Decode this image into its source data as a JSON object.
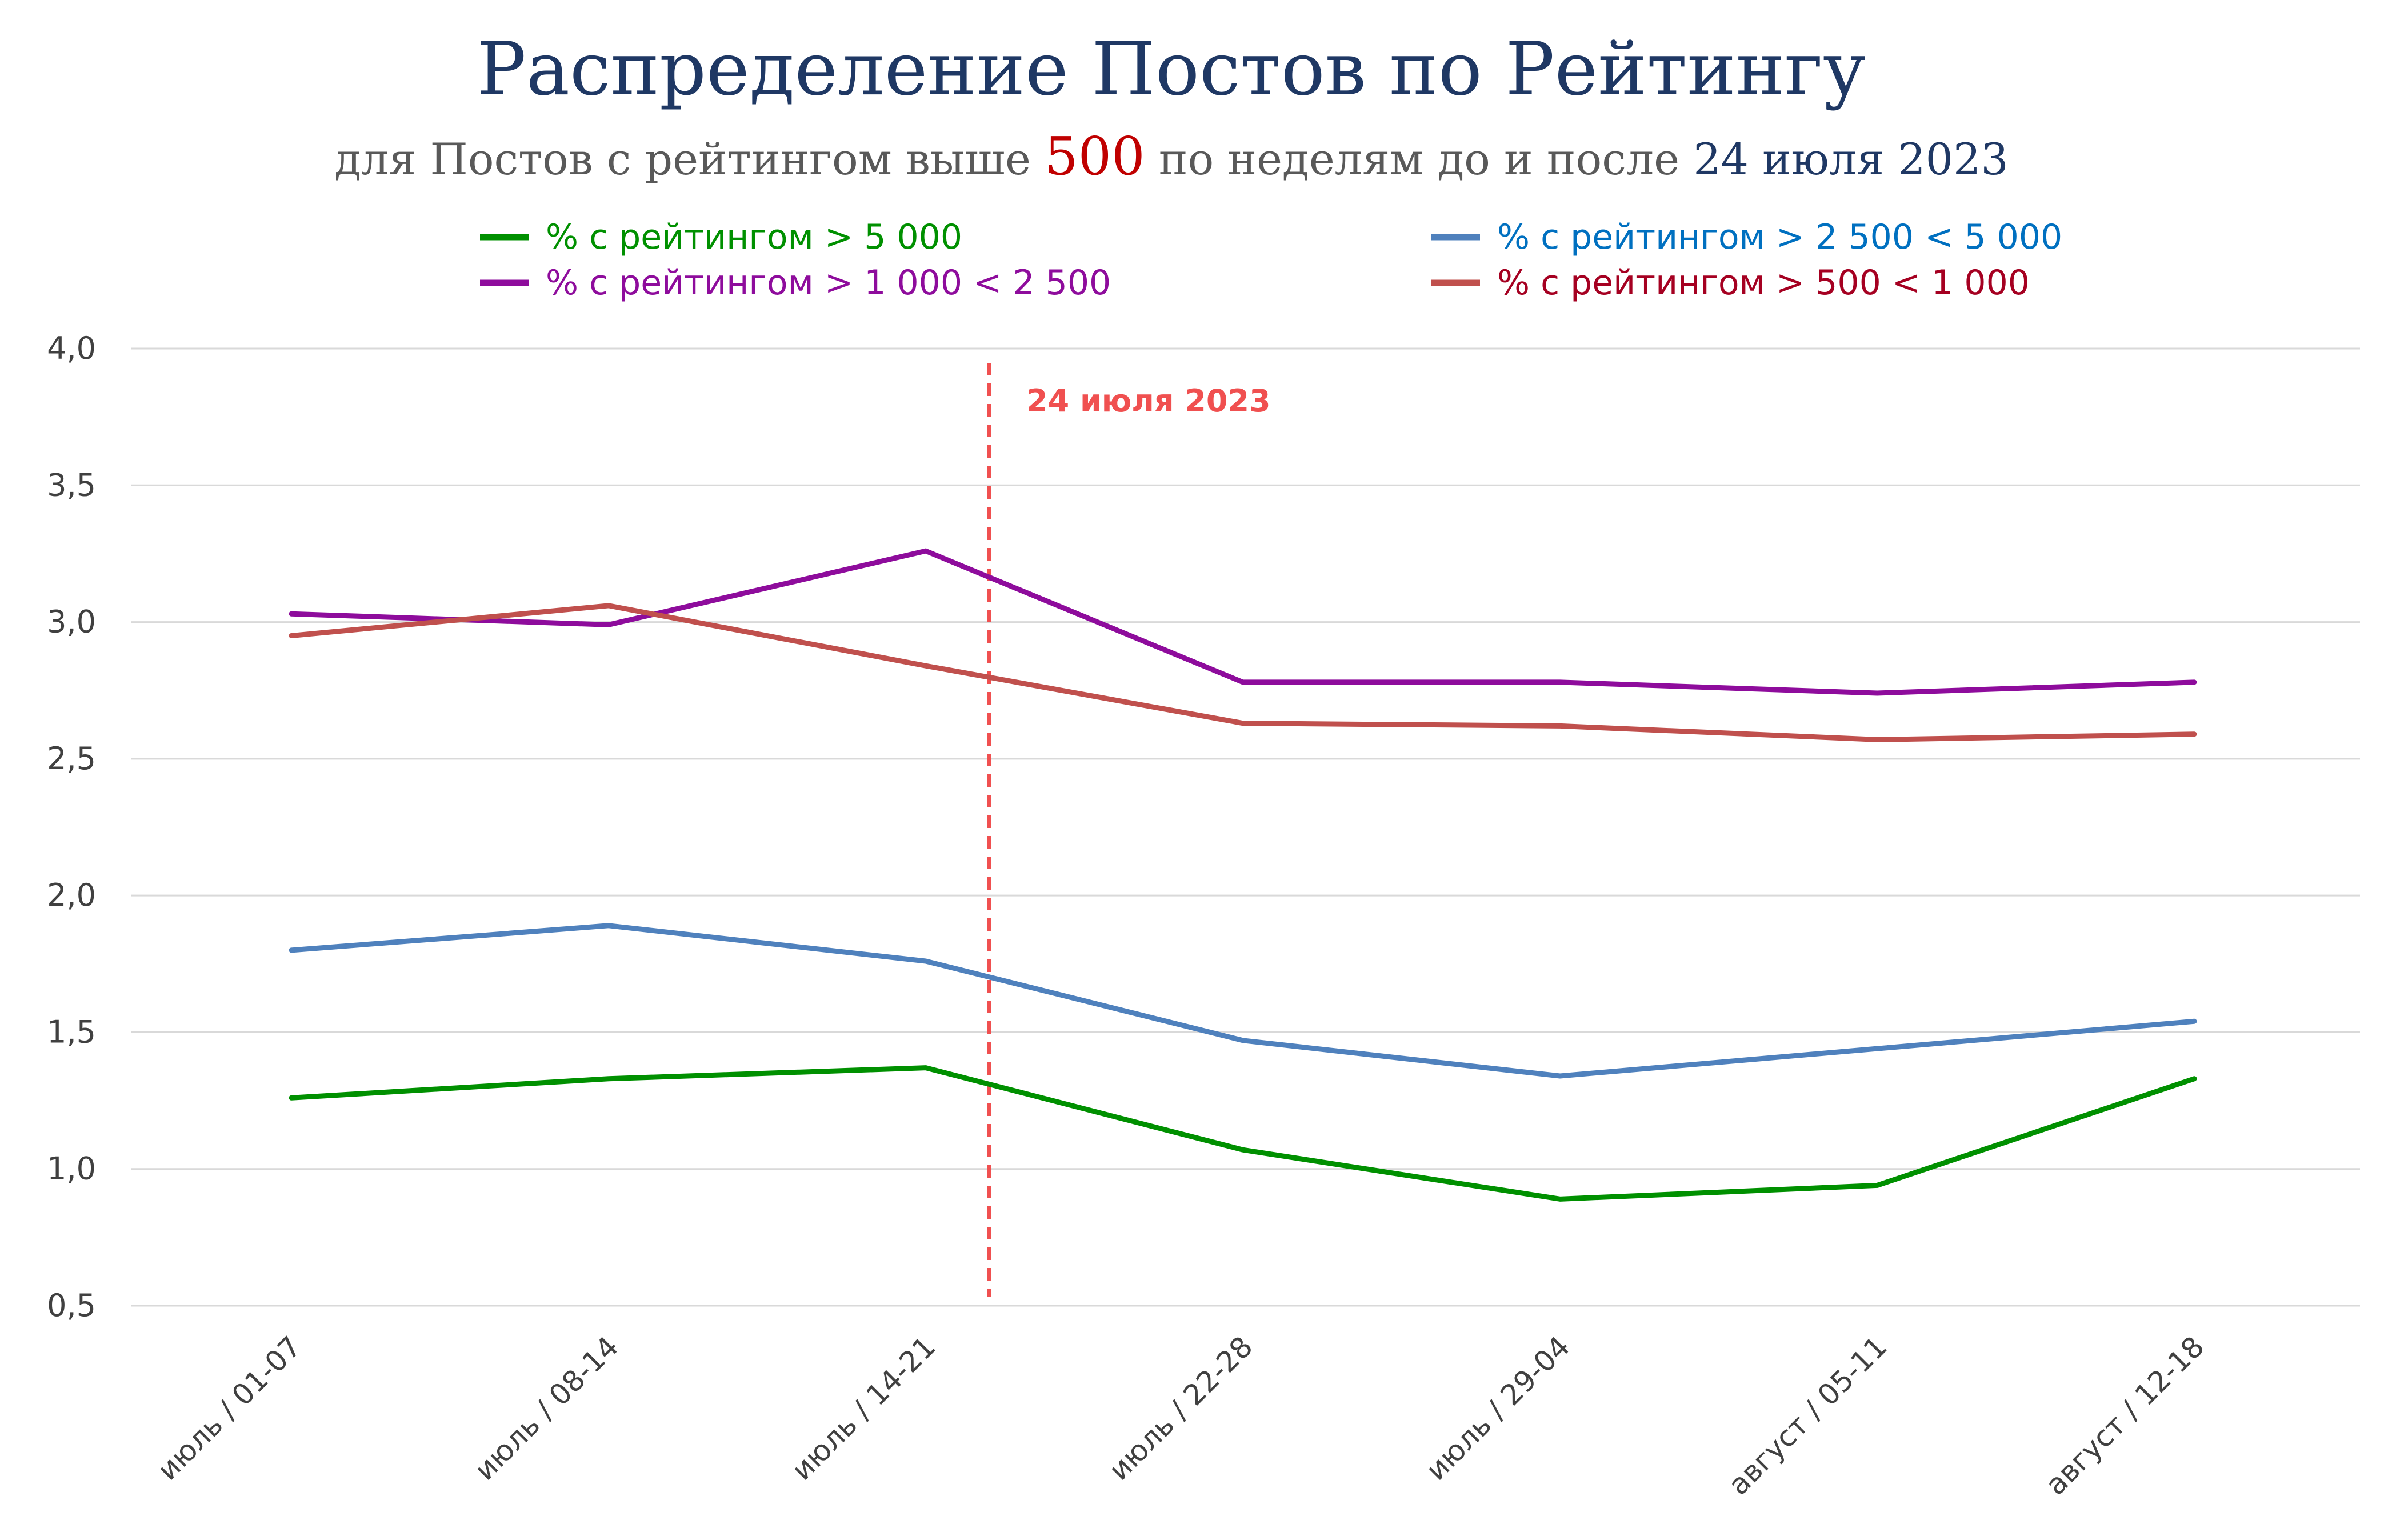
{
  "chart_data": {
    "type": "line",
    "title": "Распределение Постов по Рейтингу",
    "subtitle": {
      "part1": "для Постов с рейтингом выше ",
      "highlight": "500",
      "part2": " по неделям до и после ",
      "date": "24 июля 2023"
    },
    "categories": [
      "июль / 01-07",
      "июль / 08-14",
      "июль / 14-21",
      "июль / 22-28",
      "июль / 29-04",
      "август / 05-11",
      "август / 12-18"
    ],
    "ylim": [
      0.5,
      4.0
    ],
    "yticks": [
      "0,5",
      "1,0",
      "1,5",
      "2,0",
      "2,5",
      "3,0",
      "3,5",
      "4,0"
    ],
    "ytick_values": [
      0.5,
      1.0,
      1.5,
      2.0,
      2.5,
      3.0,
      3.5,
      4.0
    ],
    "series": [
      {
        "name": "% с рейтингом > 5 000",
        "color": "#009000",
        "text_color": "#009000",
        "values": [
          1.26,
          1.33,
          1.37,
          1.07,
          0.89,
          0.94,
          1.33
        ]
      },
      {
        "name": "% с рейтингом > 2 500 < 5 000",
        "color": "#4f81bd",
        "text_color": "#0070c0",
        "values": [
          1.8,
          1.89,
          1.76,
          1.47,
          1.34,
          1.44,
          1.54
        ]
      },
      {
        "name": "% с рейтингом > 1 000 < 2 500",
        "color": "#8e0c9c",
        "text_color": "#8e0c9c",
        "values": [
          3.03,
          2.99,
          3.26,
          2.78,
          2.78,
          2.74,
          2.78
        ]
      },
      {
        "name": "% с рейтингом > 500 < 1 000",
        "color": "#c0504d",
        "text_color": "#a50021",
        "values": [
          2.95,
          3.06,
          2.84,
          2.63,
          2.62,
          2.57,
          2.59
        ]
      }
    ],
    "annotation": {
      "label": "24 июля 2023",
      "x_between": [
        2,
        3
      ],
      "position_fraction": 0.2,
      "color": "#f05050"
    },
    "legend": "top",
    "grid": "horizontal",
    "xlabel": "",
    "ylabel": ""
  }
}
